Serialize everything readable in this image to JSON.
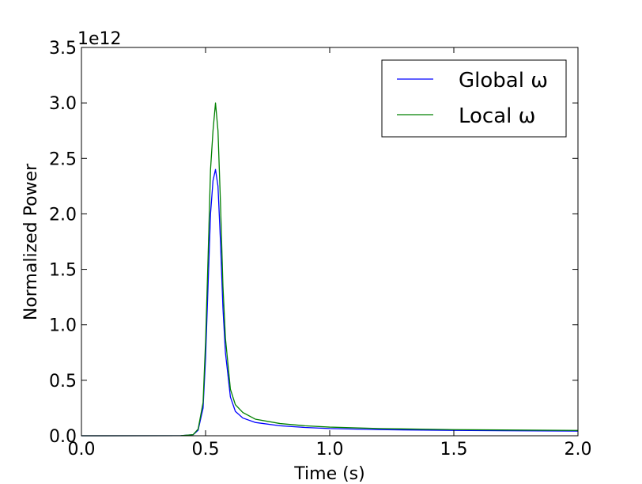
{
  "chart_data": {
    "type": "line",
    "title": "",
    "xlabel": "Time (s)",
    "ylabel": "Normalized Power",
    "y_offset_label": "1e12",
    "xlim": [
      0.0,
      2.0
    ],
    "ylim": [
      0.0,
      3.5
    ],
    "xticks": [
      0.0,
      0.5,
      1.0,
      1.5,
      2.0
    ],
    "xtick_labels": [
      "0.0",
      "0.5",
      "1.0",
      "1.5",
      "2.0"
    ],
    "yticks": [
      0.0,
      0.5,
      1.0,
      1.5,
      2.0,
      2.5,
      3.0,
      3.5
    ],
    "ytick_labels": [
      "0.0",
      "0.5",
      "1.0",
      "1.5",
      "2.0",
      "2.5",
      "3.0",
      "3.5"
    ],
    "grid": false,
    "legend_position": "top-right",
    "series": [
      {
        "name": "Global ω",
        "color": "#0000ff",
        "x": [
          0.0,
          0.4,
          0.45,
          0.47,
          0.49,
          0.5,
          0.51,
          0.52,
          0.53,
          0.54,
          0.55,
          0.56,
          0.57,
          0.58,
          0.6,
          0.62,
          0.65,
          0.7,
          0.8,
          0.9,
          1.0,
          1.2,
          1.5,
          2.0
        ],
        "values": [
          0.0,
          0.001,
          0.01,
          0.05,
          0.25,
          0.7,
          1.35,
          2.0,
          2.3,
          2.4,
          2.25,
          1.75,
          1.15,
          0.75,
          0.35,
          0.22,
          0.16,
          0.12,
          0.09,
          0.075,
          0.065,
          0.055,
          0.048,
          0.042
        ]
      },
      {
        "name": "Local ω",
        "color": "#008000",
        "x": [
          0.0,
          0.4,
          0.45,
          0.47,
          0.49,
          0.5,
          0.51,
          0.52,
          0.53,
          0.54,
          0.55,
          0.56,
          0.57,
          0.58,
          0.6,
          0.62,
          0.65,
          0.7,
          0.8,
          0.9,
          1.0,
          1.2,
          1.5,
          2.0
        ],
        "values": [
          0.0,
          0.001,
          0.01,
          0.06,
          0.3,
          0.85,
          1.6,
          2.4,
          2.75,
          3.0,
          2.75,
          2.1,
          1.35,
          0.88,
          0.42,
          0.28,
          0.21,
          0.15,
          0.11,
          0.09,
          0.078,
          0.065,
          0.055,
          0.048
        ]
      }
    ]
  }
}
